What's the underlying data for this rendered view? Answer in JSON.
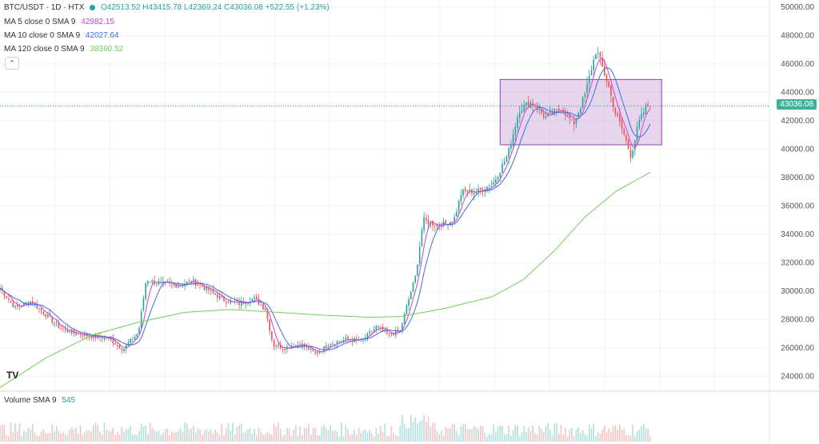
{
  "header": {
    "symbol": "BTC/USDT · 1D · HTX",
    "ohlc": "O42513.52 H43415.78 L42369.24 C43036.08 +522.55 (+1.23%)",
    "colors": {
      "up": "#26a69a",
      "down": "#ef5350"
    }
  },
  "indicators": [
    {
      "label": "MA 5 close 0 SMA 9",
      "value": "42982.15",
      "color": "#d63fd1"
    },
    {
      "label": "MA 10 close 0 SMA 9",
      "value": "42027.64",
      "color": "#3d6fe0"
    },
    {
      "label": "MA 120 close 0 SMA 9",
      "value": "38360.52",
      "color": "#6fd05a"
    }
  ],
  "price_axis": {
    "ticks": [
      "50000.00",
      "48000.00",
      "46000.00",
      "44000.00",
      "42000.00",
      "40000.00",
      "38000.00",
      "36000.00",
      "34000.00",
      "32000.00",
      "30000.00",
      "28000.00",
      "26000.00",
      "24000.00"
    ],
    "last_price_label": "43036.08"
  },
  "volume": {
    "label": "Volume SMA 9",
    "value": "545"
  },
  "logo_text": "TV",
  "chart_data": {
    "type": "line",
    "title": "BTC/USDT · 1D · HTX",
    "ylim": [
      23000,
      50500
    ],
    "last_price": 43036.08,
    "box": {
      "x_range": [
        0.65,
        0.86
      ],
      "y_range": [
        40300,
        44900
      ],
      "color": "#8e44ad"
    },
    "close_series_anchors": [
      [
        0,
        30200
      ],
      [
        0.02,
        28800
      ],
      [
        0.04,
        29300
      ],
      [
        0.06,
        28300
      ],
      [
        0.08,
        27300
      ],
      [
        0.1,
        27000
      ],
      [
        0.12,
        26800
      ],
      [
        0.14,
        26700
      ],
      [
        0.16,
        25900
      ],
      [
        0.18,
        27100
      ],
      [
        0.19,
        30800
      ],
      [
        0.21,
        30500
      ],
      [
        0.23,
        30400
      ],
      [
        0.25,
        30700
      ],
      [
        0.27,
        30100
      ],
      [
        0.29,
        29400
      ],
      [
        0.31,
        29100
      ],
      [
        0.33,
        29500
      ],
      [
        0.345,
        28700
      ],
      [
        0.355,
        26200
      ],
      [
        0.37,
        26000
      ],
      [
        0.39,
        26300
      ],
      [
        0.41,
        25600
      ],
      [
        0.43,
        26300
      ],
      [
        0.45,
        26600
      ],
      [
        0.47,
        26500
      ],
      [
        0.49,
        27500
      ],
      [
        0.505,
        26900
      ],
      [
        0.52,
        27200
      ],
      [
        0.53,
        29200
      ],
      [
        0.54,
        31000
      ],
      [
        0.55,
        35000
      ],
      [
        0.57,
        34600
      ],
      [
        0.59,
        35000
      ],
      [
        0.6,
        37000
      ],
      [
        0.62,
        37000
      ],
      [
        0.64,
        37500
      ],
      [
        0.66,
        39600
      ],
      [
        0.675,
        42800
      ],
      [
        0.69,
        43300
      ],
      [
        0.71,
        42200
      ],
      [
        0.73,
        42900
      ],
      [
        0.745,
        41700
      ],
      [
        0.76,
        43800
      ],
      [
        0.775,
        47000
      ],
      [
        0.79,
        44600
      ],
      [
        0.8,
        42500
      ],
      [
        0.81,
        41200
      ],
      [
        0.82,
        39500
      ],
      [
        0.83,
        41800
      ],
      [
        0.84,
        43000
      ],
      [
        0.845,
        43036
      ]
    ],
    "ma120_anchors": [
      [
        0,
        23200
      ],
      [
        0.06,
        25300
      ],
      [
        0.12,
        26900
      ],
      [
        0.18,
        27800
      ],
      [
        0.24,
        28500
      ],
      [
        0.3,
        28700
      ],
      [
        0.36,
        28500
      ],
      [
        0.42,
        28300
      ],
      [
        0.48,
        28150
      ],
      [
        0.52,
        28200
      ],
      [
        0.58,
        28800
      ],
      [
        0.64,
        29600
      ],
      [
        0.68,
        30800
      ],
      [
        0.72,
        32800
      ],
      [
        0.76,
        35200
      ],
      [
        0.8,
        37000
      ],
      [
        0.845,
        38360
      ]
    ],
    "ma5_value": 42982.15,
    "ma10_value": 42027.64,
    "ma120_value": 38360.52,
    "volume_sma": 545
  }
}
